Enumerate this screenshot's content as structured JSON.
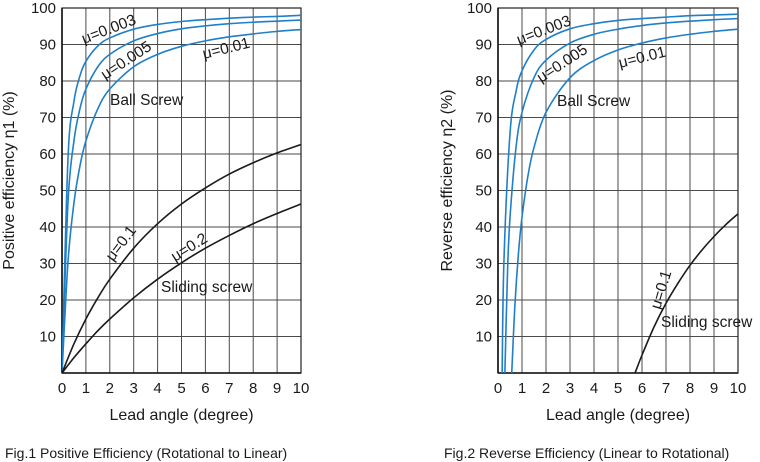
{
  "chart_data": [
    {
      "type": "line",
      "caption": "Fig.1 Positive Efficiency (Rotational to Linear)",
      "xlabel": "Lead angle (degree)",
      "ylabel": "Positive efficiency η1 (%)",
      "xlim": [
        0,
        10
      ],
      "ylim": [
        0,
        100
      ],
      "xticks": [
        "0",
        "1",
        "2",
        "3",
        "4",
        "5",
        "6",
        "7",
        "8",
        "9",
        "10"
      ],
      "yticks": [
        "10",
        "20",
        "30",
        "40",
        "50",
        "60",
        "70",
        "80",
        "90",
        "100"
      ],
      "grid": true,
      "annotations": [
        "Ball Screw",
        "Sliding screw"
      ],
      "series": [
        {
          "name": "μ=0.003",
          "group": "Ball Screw",
          "color": "#1f7fc8",
          "x": [
            0,
            0.25,
            0.5,
            0.75,
            1,
            1.5,
            2,
            3,
            4,
            5,
            6,
            7,
            8,
            9,
            10
          ],
          "y": [
            0,
            58.7,
            74.4,
            81.4,
            85.4,
            89.6,
            91.8,
            94.2,
            95.5,
            96.3,
            96.8,
            97.2,
            97.5,
            97.7,
            98.0
          ]
        },
        {
          "name": "μ=0.005",
          "group": "Ball Screw",
          "color": "#1f7fc8",
          "x": [
            0,
            0.25,
            0.5,
            0.75,
            1,
            1.5,
            2,
            3,
            4,
            5,
            6,
            7,
            8,
            9,
            10
          ],
          "y": [
            0,
            46.6,
            63.6,
            72.4,
            77.8,
            83.9,
            87.3,
            91.0,
            93.0,
            94.3,
            95.1,
            95.7,
            96.1,
            96.4,
            96.7
          ]
        },
        {
          "name": "μ=0.01",
          "group": "Ball Screw",
          "color": "#1f7fc8",
          "x": [
            0,
            0.25,
            0.5,
            0.75,
            1,
            1.5,
            2,
            3,
            4,
            5,
            6,
            7,
            8,
            9,
            10
          ],
          "y": [
            0,
            30.4,
            46.6,
            56.7,
            63.6,
            72.4,
            77.8,
            83.9,
            87.3,
            89.5,
            91.0,
            92.1,
            92.9,
            93.6,
            94.1
          ]
        },
        {
          "name": "μ=0.1",
          "group": "Sliding screw",
          "color": "#1a1a1a",
          "x": [
            0,
            0.5,
            1,
            1.5,
            2,
            3,
            4,
            5,
            6,
            7,
            8,
            9,
            10
          ],
          "y": [
            0,
            8.0,
            14.8,
            20.6,
            25.7,
            34.2,
            40.9,
            46.3,
            50.7,
            54.5,
            57.6,
            60.3,
            62.6
          ]
        },
        {
          "name": "μ=0.2",
          "group": "Sliding screw",
          "color": "#1a1a1a",
          "x": [
            0,
            0.5,
            1,
            1.5,
            2,
            3,
            4,
            5,
            6,
            7,
            8,
            9,
            10
          ],
          "y": [
            0,
            4.2,
            8.0,
            11.6,
            14.8,
            20.6,
            25.7,
            30.2,
            34.2,
            37.7,
            40.9,
            43.7,
            46.3
          ]
        }
      ]
    },
    {
      "type": "line",
      "caption": "Fig.2 Reverse Efficiency (Linear to Rotational)",
      "xlabel": "Lead angle (degree)",
      "ylabel": "Reverse efficiency η2 (%)",
      "xlim": [
        0,
        10
      ],
      "ylim": [
        0,
        100
      ],
      "xticks": [
        "0",
        "1",
        "2",
        "3",
        "4",
        "5",
        "6",
        "7",
        "8",
        "9",
        "10"
      ],
      "yticks": [
        "10",
        "20",
        "30",
        "40",
        "50",
        "60",
        "70",
        "80",
        "90",
        "100"
      ],
      "grid": true,
      "annotations": [
        "Ball Screw",
        "Sliding screw"
      ],
      "series": [
        {
          "name": "μ=0.003",
          "group": "Ball Screw",
          "color": "#1f7fc8",
          "x": [
            0.172,
            0.25,
            0.5,
            0.75,
            1,
            1.5,
            2,
            3,
            4,
            5,
            6,
            7,
            8,
            9,
            10
          ],
          "y": [
            0,
            31.2,
            65.6,
            77.1,
            82.8,
            88.5,
            91.4,
            94.3,
            95.7,
            96.6,
            97.1,
            97.5,
            97.9,
            98.1,
            98.3
          ]
        },
        {
          "name": "μ=0.005",
          "group": "Ball Screw",
          "color": "#1f7fc8",
          "x": [
            0.287,
            0.4,
            0.5,
            0.75,
            1,
            1.5,
            2,
            3,
            4,
            5,
            6,
            7,
            8,
            9,
            10
          ],
          "y": [
            0,
            28.4,
            42.6,
            61.8,
            71.4,
            80.9,
            85.7,
            90.4,
            92.8,
            94.2,
            95.2,
            95.9,
            96.4,
            96.8,
            97.1
          ]
        },
        {
          "name": "μ=0.01",
          "group": "Ball Screw",
          "color": "#1f7fc8",
          "x": [
            0.573,
            0.7,
            0.85,
            1,
            1.25,
            1.5,
            2,
            3,
            4,
            5,
            6,
            7,
            8,
            9,
            10
          ],
          "y": [
            0,
            18.1,
            32.6,
            42.7,
            54.1,
            61.8,
            71.4,
            80.9,
            85.6,
            88.5,
            90.4,
            91.8,
            92.8,
            93.6,
            94.2
          ]
        },
        {
          "name": "μ=0.1",
          "group": "Sliding screw",
          "color": "#1a1a1a",
          "x": [
            5.71,
            6,
            6.5,
            7,
            7.5,
            8,
            8.5,
            9,
            9.5,
            10
          ],
          "y": [
            0,
            4.9,
            12.6,
            19.1,
            24.6,
            29.5,
            33.7,
            37.4,
            40.7,
            43.6
          ]
        }
      ]
    }
  ]
}
